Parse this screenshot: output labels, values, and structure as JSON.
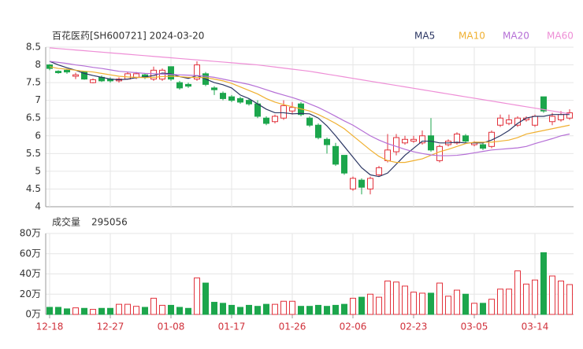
{
  "chart_data": [
    {
      "type": "candlestick",
      "title": "百花医药[SH600721] 2024-03-20",
      "up_color": "#e2323c",
      "down_color": "#1ca64c",
      "open": [
        8.0,
        7.82,
        7.85,
        7.68,
        7.8,
        7.5,
        7.65,
        7.6,
        7.55,
        7.6,
        7.65,
        7.72,
        7.6,
        7.6,
        7.95,
        7.5,
        7.45,
        7.6,
        7.75,
        7.35,
        7.2,
        7.1,
        7.05,
        7.0,
        6.9,
        6.5,
        6.4,
        6.5,
        6.7,
        6.9,
        6.5,
        6.3,
        5.9,
        5.7,
        5.45,
        4.5,
        4.75,
        4.5,
        4.9,
        5.3,
        5.55,
        5.8,
        5.85,
        5.8,
        6.0,
        5.3,
        5.75,
        5.8,
        6.0,
        5.75,
        5.75,
        5.7,
        6.3,
        6.35,
        6.3,
        6.45,
        6.3,
        7.1,
        6.4,
        6.45,
        6.5
      ],
      "high": [
        8.02,
        7.85,
        7.88,
        7.78,
        7.82,
        7.62,
        7.7,
        7.65,
        7.65,
        7.8,
        7.8,
        7.75,
        7.95,
        7.9,
        7.95,
        7.55,
        7.5,
        8.1,
        7.8,
        7.4,
        7.25,
        7.15,
        7.1,
        7.05,
        7.0,
        6.55,
        6.6,
        7.0,
        6.95,
        6.95,
        6.55,
        6.35,
        5.95,
        5.8,
        5.45,
        4.85,
        4.8,
        4.85,
        5.15,
        6.05,
        6.05,
        6.0,
        6.0,
        6.15,
        6.5,
        5.75,
        5.9,
        6.1,
        6.05,
        5.85,
        5.8,
        6.15,
        6.6,
        6.6,
        6.55,
        6.55,
        6.6,
        7.1,
        6.65,
        6.7,
        6.75
      ],
      "low": [
        7.85,
        7.75,
        7.75,
        7.6,
        7.58,
        7.48,
        7.52,
        7.5,
        7.5,
        7.58,
        7.6,
        7.6,
        7.55,
        7.55,
        7.55,
        7.3,
        7.35,
        7.55,
        7.4,
        7.15,
        7.0,
        6.95,
        6.9,
        6.85,
        6.5,
        6.3,
        6.35,
        6.45,
        6.6,
        6.55,
        6.25,
        5.9,
        5.5,
        5.15,
        4.9,
        4.45,
        4.35,
        4.35,
        4.85,
        5.25,
        5.45,
        5.75,
        5.8,
        5.75,
        5.55,
        5.25,
        5.7,
        5.75,
        5.8,
        5.7,
        5.6,
        5.65,
        6.25,
        6.3,
        6.25,
        6.4,
        6.25,
        6.65,
        6.3,
        6.4,
        6.45
      ],
      "close": [
        7.9,
        7.78,
        7.8,
        7.72,
        7.6,
        7.58,
        7.55,
        7.55,
        7.6,
        7.75,
        7.75,
        7.65,
        7.85,
        7.85,
        7.6,
        7.35,
        7.4,
        8.0,
        7.45,
        7.3,
        7.05,
        7.0,
        6.95,
        6.9,
        6.55,
        6.35,
        6.55,
        6.85,
        6.8,
        6.6,
        6.3,
        5.95,
        5.75,
        5.2,
        4.95,
        4.8,
        4.55,
        4.8,
        5.1,
        5.6,
        5.95,
        5.9,
        5.9,
        6.0,
        5.6,
        5.7,
        5.85,
        6.05,
        5.85,
        5.8,
        5.65,
        6.1,
        6.5,
        6.45,
        6.5,
        6.5,
        6.55,
        6.7,
        6.55,
        6.6,
        6.65
      ],
      "series": [
        {
          "name": "MA5",
          "color": "#2b3663",
          "values": [
            8.1,
            8.0,
            7.92,
            7.85,
            7.76,
            7.7,
            7.65,
            7.6,
            7.58,
            7.6,
            7.64,
            7.66,
            7.7,
            7.77,
            7.75,
            7.67,
            7.62,
            7.7,
            7.6,
            7.5,
            7.44,
            7.35,
            7.15,
            7.05,
            6.9,
            6.75,
            6.65,
            6.65,
            6.62,
            6.63,
            6.62,
            6.5,
            6.28,
            6.0,
            5.7,
            5.4,
            5.1,
            4.9,
            4.85,
            4.95,
            5.2,
            5.45,
            5.65,
            5.85,
            5.85,
            5.8,
            5.8,
            5.82,
            5.8,
            5.8,
            5.8,
            5.88,
            6.0,
            6.15,
            6.35,
            6.5,
            6.55,
            6.55,
            6.6,
            6.6,
            6.6
          ]
        },
        {
          "name": "MA10",
          "color": "#f0b030",
          "values": [
            7.95,
            7.9,
            7.88,
            7.85,
            7.82,
            7.8,
            7.76,
            7.72,
            7.68,
            7.66,
            7.65,
            7.64,
            7.65,
            7.67,
            7.68,
            7.67,
            7.65,
            7.65,
            7.64,
            7.6,
            7.55,
            7.48,
            7.38,
            7.28,
            7.18,
            7.05,
            6.95,
            6.88,
            6.82,
            6.76,
            6.7,
            6.6,
            6.48,
            6.35,
            6.2,
            6.0,
            5.8,
            5.6,
            5.42,
            5.3,
            5.25,
            5.25,
            5.3,
            5.35,
            5.45,
            5.55,
            5.62,
            5.7,
            5.78,
            5.82,
            5.82,
            5.82,
            5.85,
            5.88,
            5.95,
            6.05,
            6.1,
            6.15,
            6.2,
            6.25,
            6.3
          ]
        },
        {
          "name": "MA20",
          "color": "#b56fd6",
          "values": [
            8.1,
            8.07,
            8.04,
            8.0,
            7.97,
            7.93,
            7.9,
            7.86,
            7.82,
            7.8,
            7.78,
            7.76,
            7.75,
            7.74,
            7.73,
            7.72,
            7.71,
            7.7,
            7.68,
            7.65,
            7.6,
            7.55,
            7.5,
            7.45,
            7.38,
            7.3,
            7.22,
            7.15,
            7.08,
            7.0,
            6.9,
            6.8,
            6.68,
            6.55,
            6.42,
            6.3,
            6.15,
            6.0,
            5.88,
            5.78,
            5.7,
            5.62,
            5.55,
            5.5,
            5.46,
            5.44,
            5.44,
            5.45,
            5.48,
            5.52,
            5.56,
            5.6,
            5.62,
            5.64,
            5.66,
            5.7,
            5.78,
            5.85,
            5.92,
            6.0,
            6.05
          ]
        },
        {
          "name": "MA60",
          "color": "#ee8ed6",
          "values": [
            8.48,
            8.46,
            8.44,
            8.42,
            8.4,
            8.38,
            8.36,
            8.34,
            8.32,
            8.3,
            8.28,
            8.26,
            8.24,
            8.22,
            8.2,
            8.18,
            8.16,
            8.14,
            8.12,
            8.1,
            8.08,
            8.06,
            8.04,
            8.02,
            8.0,
            7.97,
            7.94,
            7.91,
            7.88,
            7.85,
            7.82,
            7.78,
            7.74,
            7.7,
            7.66,
            7.62,
            7.58,
            7.54,
            7.5,
            7.46,
            7.42,
            7.38,
            7.34,
            7.3,
            7.26,
            7.22,
            7.18,
            7.14,
            7.1,
            7.06,
            7.02,
            6.98,
            6.94,
            6.9,
            6.86,
            6.82,
            6.78,
            6.74,
            6.7,
            6.66,
            6.62
          ]
        }
      ],
      "ylim": [
        4,
        8.5
      ],
      "yticks": [
        4,
        4.5,
        5,
        5.5,
        6,
        6.5,
        7,
        7.5,
        8,
        8.5
      ],
      "grid": true
    },
    {
      "type": "bar",
      "title": "成交量",
      "categories": [
        "12-18",
        null,
        null,
        null,
        null,
        null,
        null,
        "12-27",
        null,
        null,
        null,
        null,
        null,
        null,
        "01-08",
        null,
        null,
        null,
        null,
        null,
        null,
        "01-17",
        null,
        null,
        null,
        null,
        null,
        null,
        "01-26",
        null,
        null,
        null,
        null,
        null,
        null,
        "02-06",
        null,
        null,
        null,
        null,
        null,
        null,
        "02-23",
        null,
        null,
        null,
        null,
        null,
        null,
        "03-05",
        null,
        null,
        null,
        null,
        null,
        null,
        "03-14",
        null,
        null,
        null,
        null
      ],
      "values": [
        70000,
        70000,
        55000,
        65000,
        60000,
        50000,
        60000,
        60000,
        100000,
        100000,
        80000,
        70000,
        160000,
        90000,
        90000,
        70000,
        60000,
        360000,
        310000,
        120000,
        110000,
        90000,
        70000,
        90000,
        80000,
        100000,
        100000,
        130000,
        130000,
        80000,
        80000,
        90000,
        80000,
        90000,
        100000,
        160000,
        170000,
        200000,
        170000,
        330000,
        320000,
        280000,
        220000,
        210000,
        210000,
        310000,
        180000,
        240000,
        200000,
        110000,
        110000,
        150000,
        250000,
        250000,
        430000,
        300000,
        340000,
        610000,
        380000,
        330000,
        295056
      ],
      "ylim": [
        0,
        800000
      ],
      "yticks": [
        {
          "value": 0,
          "label": "0万"
        },
        {
          "value": 200000,
          "label": "20万"
        },
        {
          "value": 400000,
          "label": "40万"
        },
        {
          "value": 600000,
          "label": "60万"
        },
        {
          "value": 800000,
          "label": "80万"
        }
      ],
      "grid": true
    }
  ]
}
